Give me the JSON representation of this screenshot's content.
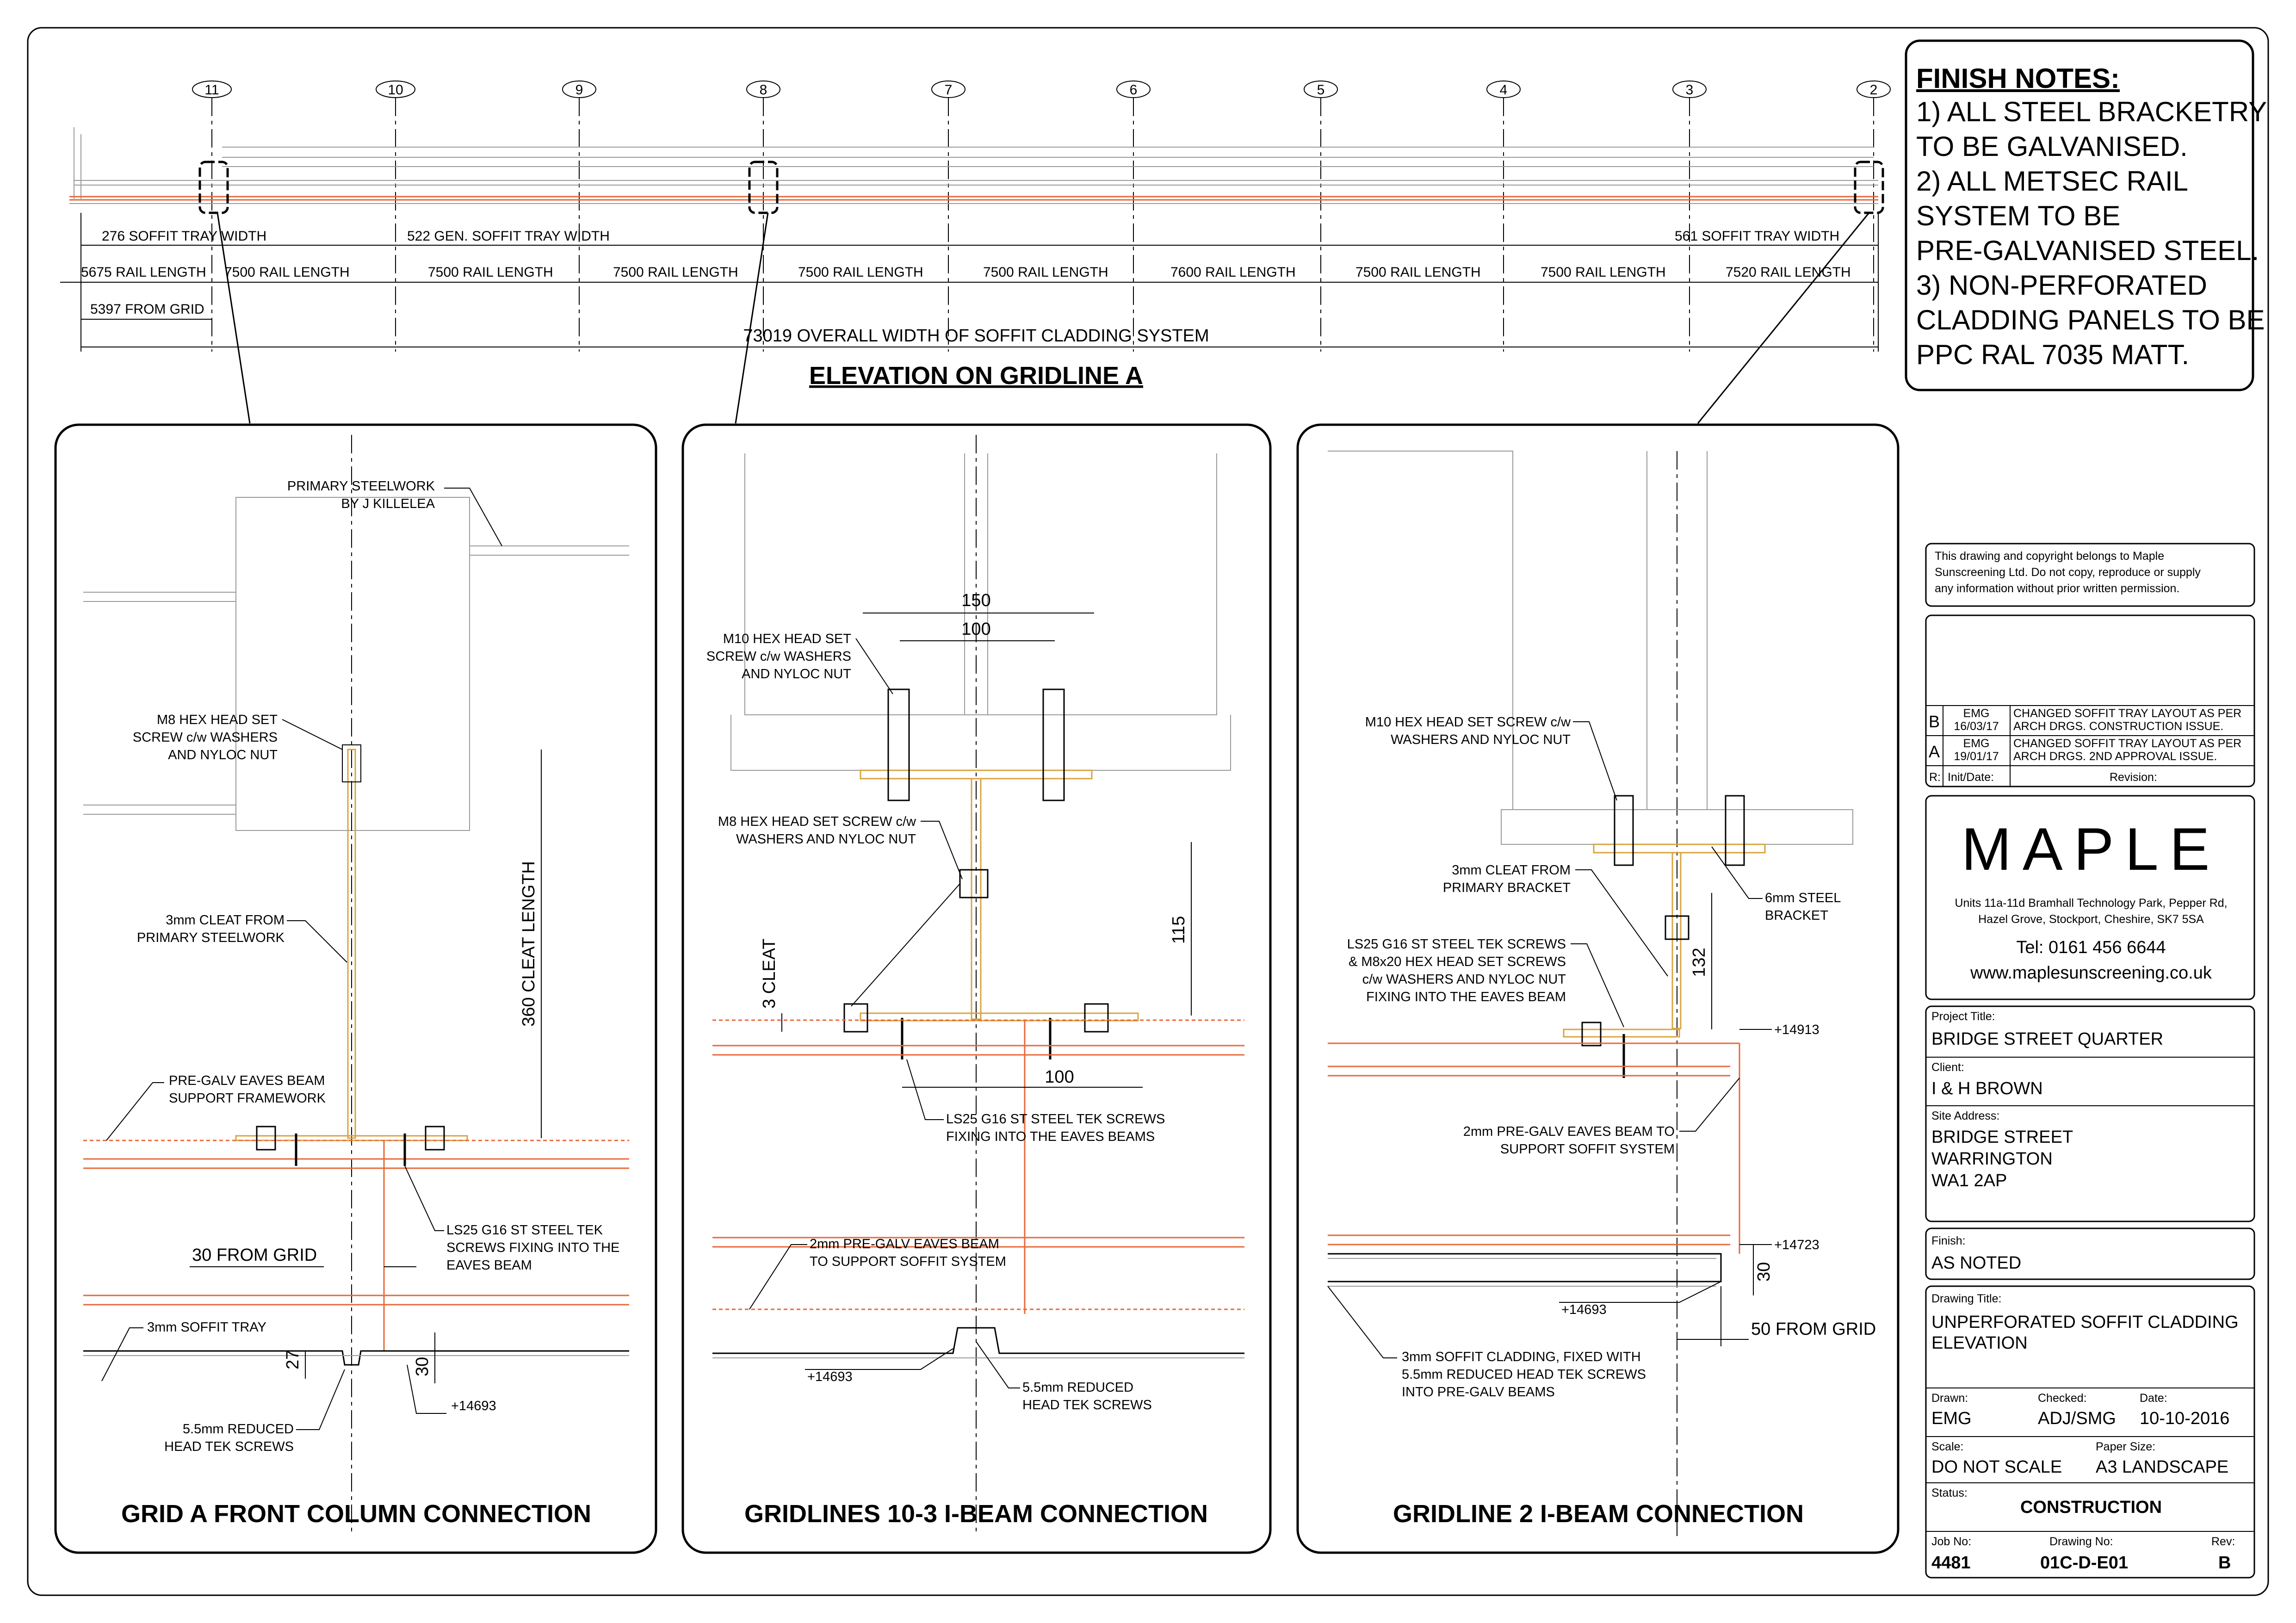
{
  "elevation": {
    "title": "ELEVATION ON GRIDLINE A",
    "gridlines": [
      "11",
      "10",
      "9",
      "8",
      "7",
      "6",
      "5",
      "4",
      "3",
      "2"
    ],
    "tray_dims": [
      "276 SOFFIT TRAY WIDTH",
      "522 GEN. SOFFIT TRAY WIDTH",
      "561 SOFFIT TRAY WIDTH"
    ],
    "rail_lengths": [
      "5675 RAIL LENGTH",
      "7500 RAIL LENGTH",
      "7500 RAIL LENGTH",
      "7500 RAIL LENGTH",
      "7500 RAIL LENGTH",
      "7500 RAIL LENGTH",
      "7600 RAIL LENGTH",
      "7500 RAIL LENGTH",
      "7500 RAIL LENGTH",
      "7520 RAIL LENGTH"
    ],
    "from_grid": "5397 FROM GRID",
    "overall": "73019 OVERALL WIDTH OF SOFFIT CLADDING SYSTEM"
  },
  "finish_notes": {
    "heading": "FINISH NOTES:",
    "lines": [
      "1) ALL STEEL BRACKETRY",
      "TO BE GALVANISED.",
      "2) ALL METSEC RAIL",
      "SYSTEM TO BE",
      "PRE-GALVANISED STEEL.",
      "3) NON-PERFORATED",
      "CLADDING PANELS TO BE",
      "PPC RAL 7035 MATT."
    ]
  },
  "detail1": {
    "title": "GRID A FRONT COLUMN CONNECTION",
    "primary_1": "PRIMARY STEELWORK",
    "primary_2": "BY J KILLELEA",
    "m8_1": "M8 HEX HEAD SET",
    "m8_2": "SCREW c/w WASHERS",
    "m8_3": "AND NYLOC NUT",
    "cleat_1": "3mm CLEAT FROM",
    "cleat_2": "PRIMARY STEELWORK",
    "cleat_len": "360 CLEAT LENGTH",
    "eaves_1": "PRE-GALV EAVES BEAM",
    "eaves_2": "SUPPORT FRAMEWORK",
    "ls25_1": "LS25 G16 ST STEEL TEK",
    "ls25_2": "SCREWS FIXING INTO THE",
    "ls25_3": "EAVES BEAM",
    "from_grid": "30 FROM GRID",
    "tray": "3mm SOFFIT TRAY",
    "dim27": "27",
    "dim30": "30",
    "level": "+14693",
    "tek_1": "5.5mm REDUCED",
    "tek_2": "HEAD TEK SCREWS"
  },
  "detail2": {
    "title": "GRIDLINES 10-3 I-BEAM CONNECTION",
    "dim150": "150",
    "dim100a": "100",
    "m10_1": "M10 HEX HEAD SET",
    "m10_2": "SCREW c/w WASHERS",
    "m10_3": "AND NYLOC NUT",
    "m8_1": "M8 HEX HEAD SET SCREW c/w",
    "m8_2": "WASHERS AND NYLOC NUT",
    "cleat": "3 CLEAT",
    "dim115": "115",
    "dim100b": "100",
    "ls25_1": "LS25 G16 ST STEEL TEK SCREWS",
    "ls25_2": "FIXING INTO THE EAVES BEAMS",
    "eaves_1": "2mm PRE-GALV EAVES BEAM",
    "eaves_2": "TO SUPPORT SOFFIT SYSTEM",
    "level": "+14693",
    "tek_1": "5.5mm REDUCED",
    "tek_2": "HEAD TEK SCREWS"
  },
  "detail3": {
    "title": "GRIDLINE 2 I-BEAM CONNECTION",
    "m10_1": "M10 HEX HEAD SET SCREW c/w",
    "m10_2": "WASHERS AND NYLOC NUT",
    "cleat_1": "3mm CLEAT FROM",
    "cleat_2": "PRIMARY BRACKET",
    "bracket_1": "6mm STEEL",
    "bracket_2": "BRACKET",
    "ls25_1": "LS25 G16 ST STEEL TEK SCREWS",
    "ls25_2": "& M8x20 HEX HEAD SET SCREWS",
    "ls25_3": "c/w WASHERS AND NYLOC NUT",
    "ls25_4": "FIXING INTO THE EAVES BEAM",
    "dim132": "132",
    "level1": "+14913",
    "eaves_1": "2mm PRE-GALV EAVES BEAM TO",
    "eaves_2": "SUPPORT SOFFIT SYSTEM",
    "level2": "+14723",
    "dim30": "30",
    "level3": "+14693",
    "from_grid": "50 FROM GRID",
    "clad_1": "3mm SOFFIT CLADDING, FIXED WITH",
    "clad_2": "5.5mm REDUCED HEAD TEK SCREWS",
    "clad_3": "INTO PRE-GALV BEAMS"
  },
  "title_block": {
    "copyright_1": "This drawing and copyright belongs to Maple",
    "copyright_2": "Sunscreening Ltd. Do not copy, reproduce or supply",
    "copyright_3": "any information without prior written permission.",
    "revisions": [
      {
        "rev": "B",
        "init": "EMG",
        "date": "16/03/17",
        "desc1": "CHANGED SOFFIT TRAY LAYOUT AS PER",
        "desc2": "ARCH DRGS. CONSTRUCTION ISSUE."
      },
      {
        "rev": "A",
        "init": "EMG",
        "date": "19/01/17",
        "desc1": "CHANGED SOFFIT TRAY LAYOUT AS PER",
        "desc2": "ARCH DRGS. 2ND APPROVAL ISSUE."
      }
    ],
    "rev_header_r": "R:",
    "rev_header_init": "Init/Date:",
    "rev_header_rev": "Revision:",
    "logo": "MAPLE",
    "address_1": "Units 11a-11d Bramhall Technology Park, Pepper Rd,",
    "address_2": "Hazel Grove, Stockport, Cheshire, SK7 5SA",
    "tel": "Tel: 0161 456 6644",
    "web": "www.maplesunscreening.co.uk",
    "project_label": "Project Title:",
    "project": "BRIDGE STREET QUARTER",
    "client_label": "Client:",
    "client": "I & H BROWN",
    "site_label": "Site Address:",
    "site_1": "BRIDGE STREET",
    "site_2": "WARRINGTON",
    "site_3": "WA1 2AP",
    "finish_label": "Finish:",
    "finish": "AS NOTED",
    "drawing_title_label": "Drawing Title:",
    "drawing_title_1": "UNPERFORATED SOFFIT CLADDING",
    "drawing_title_2": "ELEVATION",
    "drawn_label": "Drawn:",
    "drawn": "EMG",
    "checked_label": "Checked:",
    "checked": "ADJ/SMG",
    "date_label": "Date:",
    "date": "10-10-2016",
    "scale_label": "Scale:",
    "scale": "DO NOT SCALE",
    "paper_label": "Paper Size:",
    "paper": "A3 LANDSCAPE",
    "status_label": "Status:",
    "status": "CONSTRUCTION",
    "job_label": "Job No:",
    "job": "4481",
    "drawing_no_label": "Drawing No:",
    "drawing_no": "01C-D-E01",
    "rev_label": "Rev:",
    "rev": "B"
  },
  "colors": {
    "orange": "#e8683a",
    "gold": "#d9a441",
    "grey": "#9a9a9a"
  }
}
